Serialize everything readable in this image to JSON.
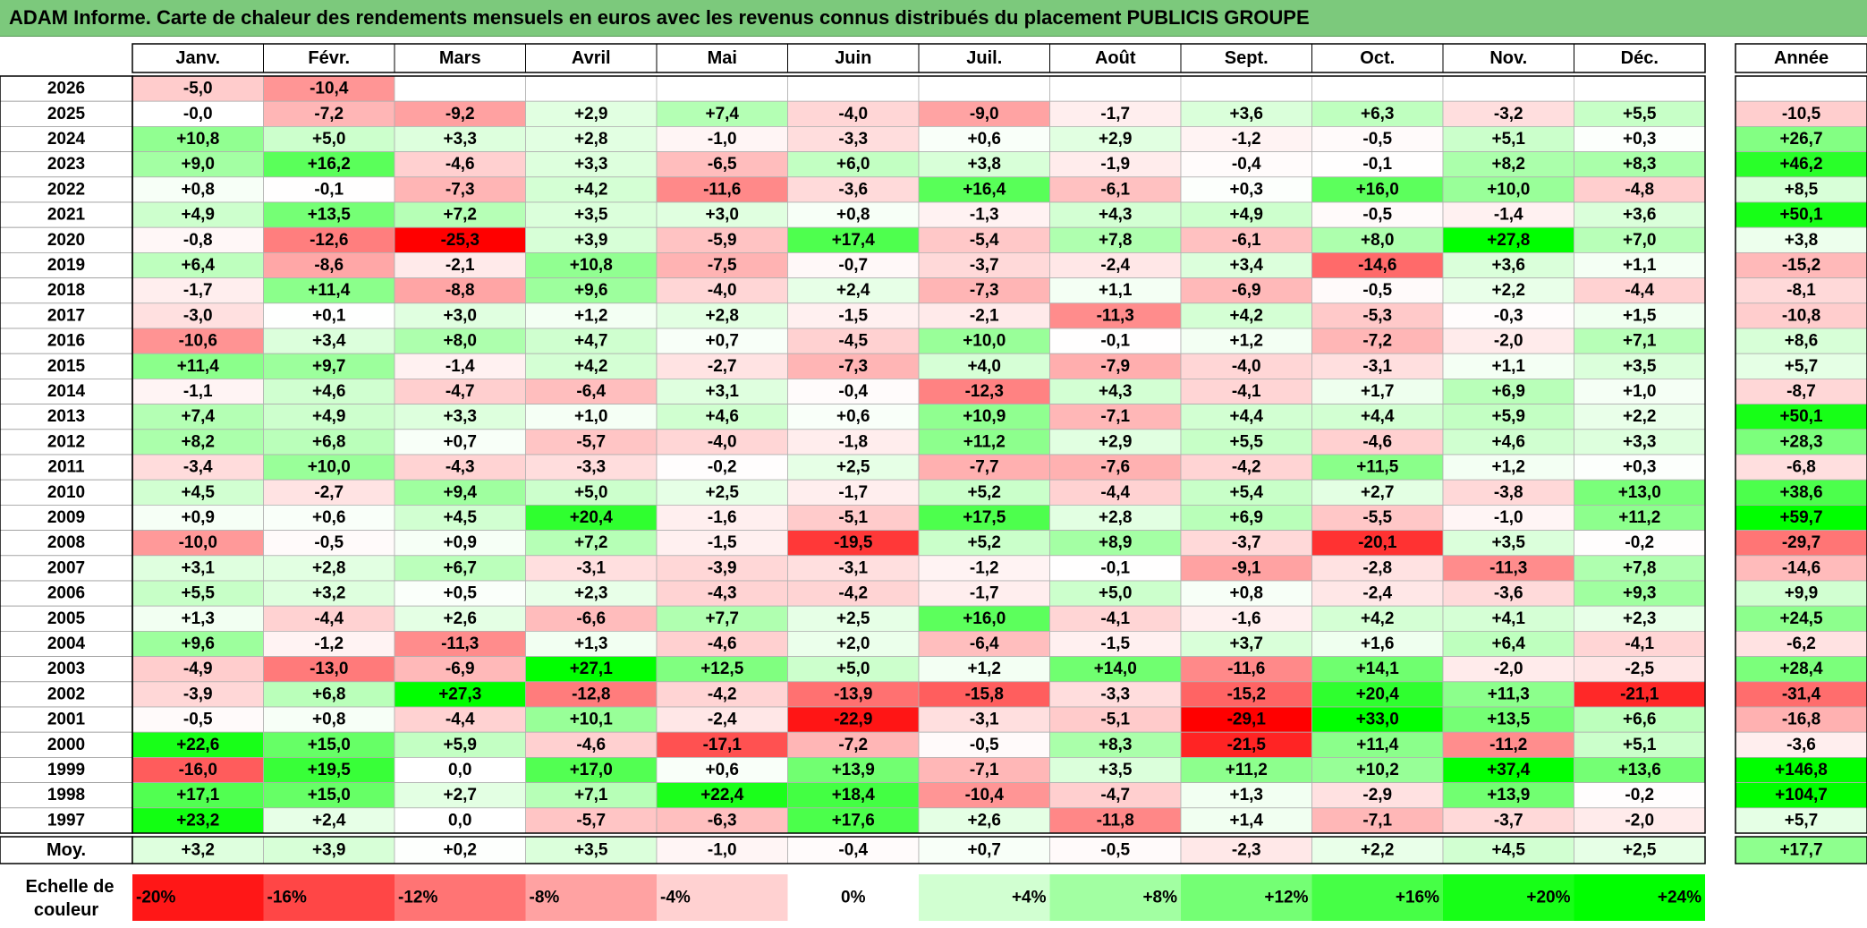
{
  "title": "ADAM Informe. Carte de chaleur des rendements mensuels en euros avec les revenus connus distribués du placement PUBLICIS GROUPE",
  "chart_data": {
    "type": "heatmap",
    "title": "ADAM Informe. Carte de chaleur des rendements mensuels en euros avec les revenus connus distribués du placement PUBLICIS GROUPE",
    "months": [
      "Janv.",
      "Févr.",
      "Mars",
      "Avril",
      "Mai",
      "Juin",
      "Juil.",
      "Août",
      "Sept.",
      "Oct.",
      "Nov.",
      "Déc."
    ],
    "year_header": "Année",
    "average_label": "Moy.",
    "rows": [
      {
        "year": "2026",
        "months": [
          "-5,0",
          "-10,4",
          "",
          "",
          "",
          "",
          "",
          "",
          "",
          "",
          "",
          ""
        ],
        "annual": ""
      },
      {
        "year": "2025",
        "months": [
          "-0,0",
          "-7,2",
          "-9,2",
          "+2,9",
          "+7,4",
          "-4,0",
          "-9,0",
          "-1,7",
          "+3,6",
          "+6,3",
          "-3,2",
          "+5,5"
        ],
        "annual": "-10,5"
      },
      {
        "year": "2024",
        "months": [
          "+10,8",
          "+5,0",
          "+3,3",
          "+2,8",
          "-1,0",
          "-3,3",
          "+0,6",
          "+2,9",
          "-1,2",
          "-0,5",
          "+5,1",
          "+0,3"
        ],
        "annual": "+26,7"
      },
      {
        "year": "2023",
        "months": [
          "+9,0",
          "+16,2",
          "-4,6",
          "+3,3",
          "-6,5",
          "+6,0",
          "+3,8",
          "-1,9",
          "-0,4",
          "-0,1",
          "+8,2",
          "+8,3"
        ],
        "annual": "+46,2"
      },
      {
        "year": "2022",
        "months": [
          "+0,8",
          "-0,1",
          "-7,3",
          "+4,2",
          "-11,6",
          "-3,6",
          "+16,4",
          "-6,1",
          "+0,3",
          "+16,0",
          "+10,0",
          "-4,8"
        ],
        "annual": "+8,5"
      },
      {
        "year": "2021",
        "months": [
          "+4,9",
          "+13,5",
          "+7,2",
          "+3,5",
          "+3,0",
          "+0,8",
          "-1,3",
          "+4,3",
          "+4,9",
          "-0,5",
          "-1,4",
          "+3,6"
        ],
        "annual": "+50,1"
      },
      {
        "year": "2020",
        "months": [
          "-0,8",
          "-12,6",
          "-25,3",
          "+3,9",
          "-5,9",
          "+17,4",
          "-5,4",
          "+7,8",
          "-6,1",
          "+8,0",
          "+27,8",
          "+7,0"
        ],
        "annual": "+3,8"
      },
      {
        "year": "2019",
        "months": [
          "+6,4",
          "-8,6",
          "-2,1",
          "+10,8",
          "-7,5",
          "-0,7",
          "-3,7",
          "-2,4",
          "+3,4",
          "-14,6",
          "+3,6",
          "+1,1"
        ],
        "annual": "-15,2"
      },
      {
        "year": "2018",
        "months": [
          "-1,7",
          "+11,4",
          "-8,8",
          "+9,6",
          "-4,0",
          "+2,4",
          "-7,3",
          "+1,1",
          "-6,9",
          "-0,5",
          "+2,2",
          "-4,4"
        ],
        "annual": "-8,1"
      },
      {
        "year": "2017",
        "months": [
          "-3,0",
          "+0,1",
          "+3,0",
          "+1,2",
          "+2,8",
          "-1,5",
          "-2,1",
          "-11,3",
          "+4,2",
          "-5,3",
          "-0,3",
          "+1,5"
        ],
        "annual": "-10,8"
      },
      {
        "year": "2016",
        "months": [
          "-10,6",
          "+3,4",
          "+8,0",
          "+4,7",
          "+0,7",
          "-4,5",
          "+10,0",
          "-0,1",
          "+1,2",
          "-7,2",
          "-2,0",
          "+7,1"
        ],
        "annual": "+8,6"
      },
      {
        "year": "2015",
        "months": [
          "+11,4",
          "+9,7",
          "-1,4",
          "+4,2",
          "-2,7",
          "-7,3",
          "+4,0",
          "-7,9",
          "-4,0",
          "-3,1",
          "+1,1",
          "+3,5"
        ],
        "annual": "+5,7"
      },
      {
        "year": "2014",
        "months": [
          "-1,1",
          "+4,6",
          "-4,7",
          "-6,4",
          "+3,1",
          "-0,4",
          "-12,3",
          "+4,3",
          "-4,1",
          "+1,7",
          "+6,9",
          "+1,0"
        ],
        "annual": "-8,7"
      },
      {
        "year": "2013",
        "months": [
          "+7,4",
          "+4,9",
          "+3,3",
          "+1,0",
          "+4,6",
          "+0,6",
          "+10,9",
          "-7,1",
          "+4,4",
          "+4,4",
          "+5,9",
          "+2,2"
        ],
        "annual": "+50,1"
      },
      {
        "year": "2012",
        "months": [
          "+8,2",
          "+6,8",
          "+0,7",
          "-5,7",
          "-4,0",
          "-1,8",
          "+11,2",
          "+2,9",
          "+5,5",
          "-4,6",
          "+4,6",
          "+3,3"
        ],
        "annual": "+28,3"
      },
      {
        "year": "2011",
        "months": [
          "-3,4",
          "+10,0",
          "-4,3",
          "-3,3",
          "-0,2",
          "+2,5",
          "-7,7",
          "-7,6",
          "-4,2",
          "+11,5",
          "+1,2",
          "+0,3"
        ],
        "annual": "-6,8"
      },
      {
        "year": "2010",
        "months": [
          "+4,5",
          "-2,7",
          "+9,4",
          "+5,0",
          "+2,5",
          "-1,7",
          "+5,2",
          "-4,4",
          "+5,4",
          "+2,7",
          "-3,8",
          "+13,0"
        ],
        "annual": "+38,6"
      },
      {
        "year": "2009",
        "months": [
          "+0,9",
          "+0,6",
          "+4,5",
          "+20,4",
          "-1,6",
          "-5,1",
          "+17,5",
          "+2,8",
          "+6,9",
          "-5,5",
          "-1,0",
          "+11,2"
        ],
        "annual": "+59,7"
      },
      {
        "year": "2008",
        "months": [
          "-10,0",
          "-0,5",
          "+0,9",
          "+7,2",
          "-1,5",
          "-19,5",
          "+5,2",
          "+8,9",
          "-3,7",
          "-20,1",
          "+3,5",
          "-0,2"
        ],
        "annual": "-29,7"
      },
      {
        "year": "2007",
        "months": [
          "+3,1",
          "+2,8",
          "+6,7",
          "-3,1",
          "-3,9",
          "-3,1",
          "-1,2",
          "-0,1",
          "-9,1",
          "-2,8",
          "-11,3",
          "+7,8"
        ],
        "annual": "-14,6"
      },
      {
        "year": "2006",
        "months": [
          "+5,5",
          "+3,2",
          "+0,5",
          "+2,3",
          "-4,3",
          "-4,2",
          "-1,7",
          "+5,0",
          "+0,8",
          "-2,4",
          "-3,6",
          "+9,3"
        ],
        "annual": "+9,9"
      },
      {
        "year": "2005",
        "months": [
          "+1,3",
          "-4,4",
          "+2,6",
          "-6,6",
          "+7,7",
          "+2,5",
          "+16,0",
          "-4,1",
          "-1,6",
          "+4,2",
          "+4,1",
          "+2,3"
        ],
        "annual": "+24,5"
      },
      {
        "year": "2004",
        "months": [
          "+9,6",
          "-1,2",
          "-11,3",
          "+1,3",
          "-4,6",
          "+2,0",
          "-6,4",
          "-1,5",
          "+3,7",
          "+1,6",
          "+6,4",
          "-4,1"
        ],
        "annual": "-6,2"
      },
      {
        "year": "2003",
        "months": [
          "-4,9",
          "-13,0",
          "-6,9",
          "+27,1",
          "+12,5",
          "+5,0",
          "+1,2",
          "+14,0",
          "-11,6",
          "+14,1",
          "-2,0",
          "-2,5"
        ],
        "annual": "+28,4"
      },
      {
        "year": "2002",
        "months": [
          "-3,9",
          "+6,8",
          "+27,3",
          "-12,8",
          "-4,2",
          "-13,9",
          "-15,8",
          "-3,3",
          "-15,2",
          "+20,4",
          "+11,3",
          "-21,1"
        ],
        "annual": "-31,4"
      },
      {
        "year": "2001",
        "months": [
          "-0,5",
          "+0,8",
          "-4,4",
          "+10,1",
          "-2,4",
          "-22,9",
          "-3,1",
          "-5,1",
          "-29,1",
          "+33,0",
          "+13,5",
          "+6,6"
        ],
        "annual": "-16,8"
      },
      {
        "year": "2000",
        "months": [
          "+22,6",
          "+15,0",
          "+5,9",
          "-4,6",
          "-17,1",
          "-7,2",
          "-0,5",
          "+8,3",
          "-21,5",
          "+11,4",
          "-11,2",
          "+5,1"
        ],
        "annual": "-3,6"
      },
      {
        "year": "1999",
        "months": [
          "-16,0",
          "+19,5",
          "0,0",
          "+17,0",
          "+0,6",
          "+13,9",
          "-7,1",
          "+3,5",
          "+11,2",
          "+10,2",
          "+37,4",
          "+13,6"
        ],
        "annual": "+146,8"
      },
      {
        "year": "1998",
        "months": [
          "+17,1",
          "+15,0",
          "+2,7",
          "+7,1",
          "+22,4",
          "+18,4",
          "-10,4",
          "-4,7",
          "+1,3",
          "-2,9",
          "+13,9",
          "-0,2"
        ],
        "annual": "+104,7"
      },
      {
        "year": "1997",
        "months": [
          "+23,2",
          "+2,4",
          "0,0",
          "-5,7",
          "-6,3",
          "+17,6",
          "+2,6",
          "-11,8",
          "+1,4",
          "-7,1",
          "-3,7",
          "-2,0"
        ],
        "annual": "+5,7"
      }
    ],
    "average": {
      "months": [
        "+3,2",
        "+3,9",
        "+0,2",
        "+3,5",
        "-1,0",
        "-0,4",
        "+0,7",
        "-0,5",
        "-2,3",
        "+2,2",
        "+4,5",
        "+2,5"
      ],
      "annual": "+17,7"
    },
    "color_scale": {
      "label_line1": "Echelle de",
      "label_line2": "couleur",
      "stops": [
        {
          "label": "-20%",
          "value": -20
        },
        {
          "label": "-16%",
          "value": -16
        },
        {
          "label": "-12%",
          "value": -12
        },
        {
          "label": "-8%",
          "value": -8
        },
        {
          "label": "-4%",
          "value": -4
        },
        {
          "label": "0%",
          "value": 0
        },
        {
          "label": "+4%",
          "value": 4
        },
        {
          "label": "+8%",
          "value": 8
        },
        {
          "label": "+12%",
          "value": 12
        },
        {
          "label": "+16%",
          "value": 16
        },
        {
          "label": "+20%",
          "value": 20
        },
        {
          "label": "+24%",
          "value": 24
        }
      ]
    },
    "colors": {
      "negative": "#ff0000",
      "neutral": "#ffffff",
      "positive": "#00ff00",
      "title_bg": "#7cc97c"
    }
  }
}
